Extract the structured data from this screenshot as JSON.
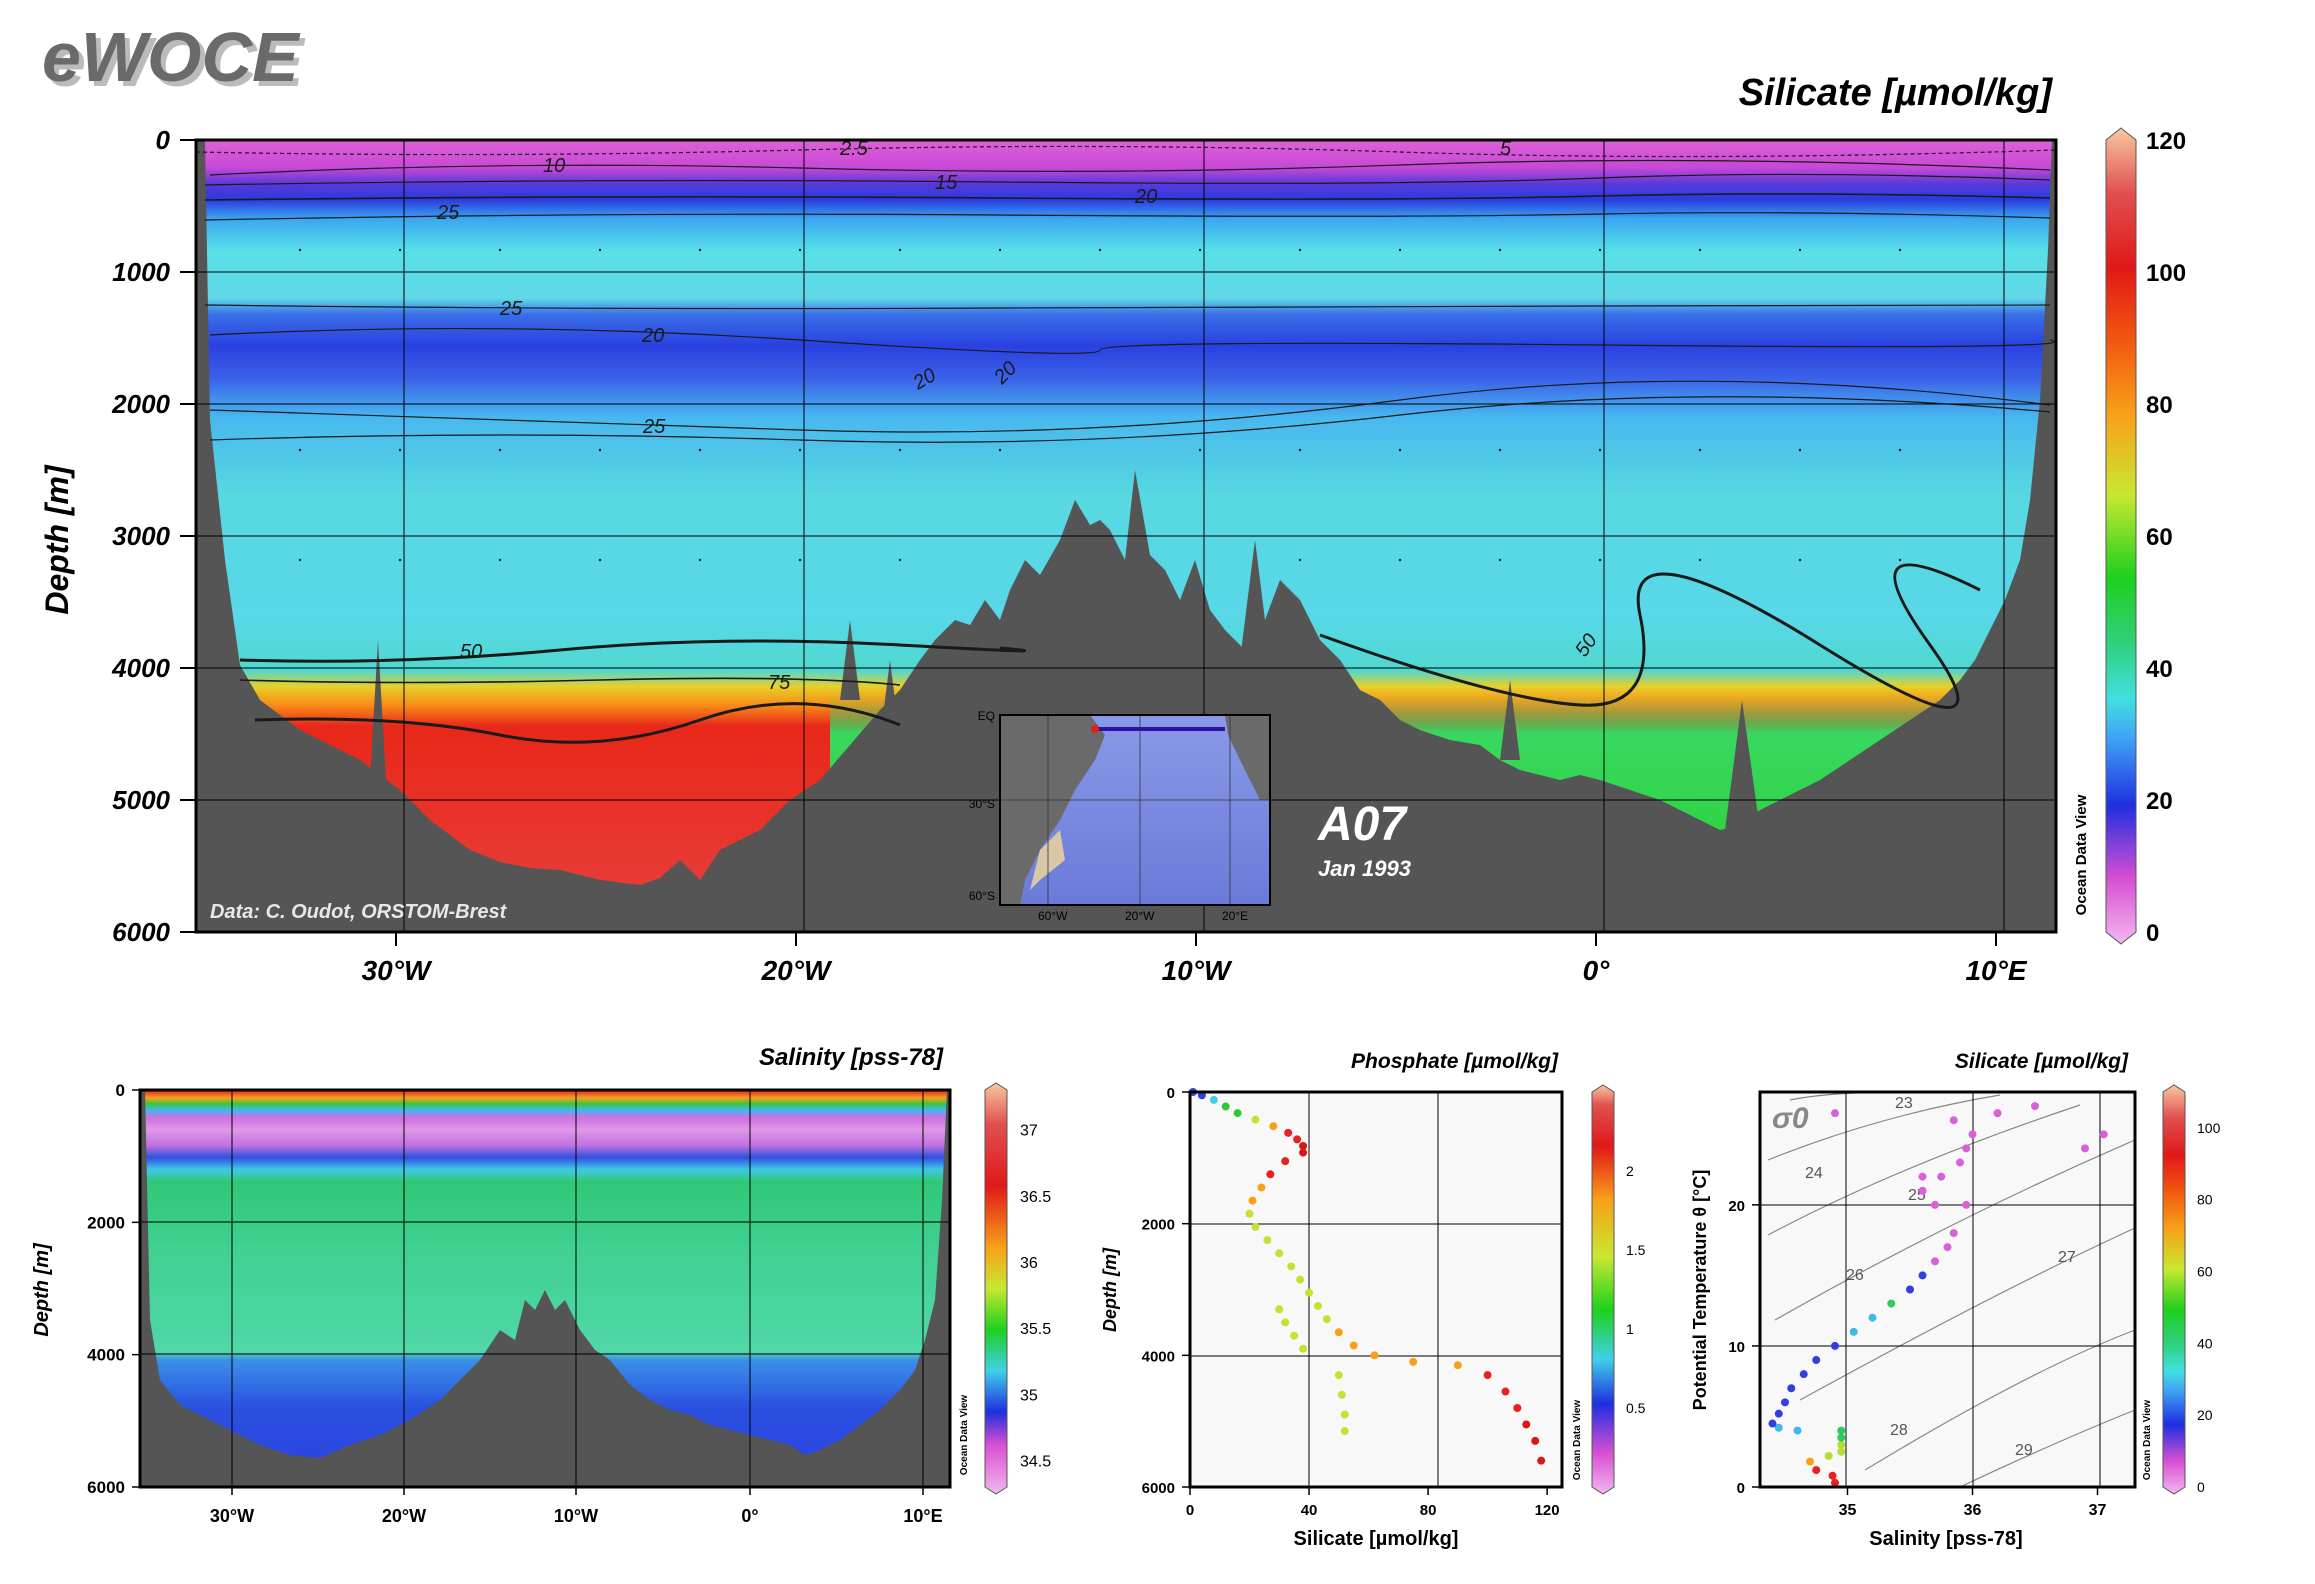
{
  "logo": "eWOCE",
  "main": {
    "title": "Silicate [µmol/kg]",
    "ylabel": "Depth [m]",
    "credit": "Data: C. Oudot, ORSTOM-Brest",
    "section": "A07",
    "date": "Jan 1993",
    "odv": "Ocean Data View",
    "inset_lat_labels": [
      "EQ",
      "30°S",
      "60°S"
    ],
    "inset_lon_labels": [
      "60°W",
      "20°W",
      "20°E"
    ]
  },
  "salinity": {
    "title": "Salinity [pss-78]",
    "ylabel": "Depth [m]",
    "odv": "Ocean Data View"
  },
  "phosphate": {
    "title": "Phosphate [µmol/kg]",
    "ylabel": "Depth [m]",
    "xlabel": "Silicate [µmol/kg]",
    "odv": "Ocean Data View"
  },
  "ts": {
    "title": "Silicate [µmol/kg]",
    "ylabel": "Potential Temperature θ [°C]",
    "xlabel": "Salinity [pss-78]",
    "sigma": "σ0",
    "odv": "Ocean Data View"
  },
  "chart_data": [
    {
      "type": "heatmap",
      "title": "Silicate [µmol/kg]",
      "ylabel": "Depth [m]",
      "x_ticks": [
        "30°W",
        "20°W",
        "10°W",
        "0°",
        "10°E"
      ],
      "x_values": [
        -30,
        -20,
        -10,
        0,
        10
      ],
      "xlim": [
        -35,
        11.5
      ],
      "y_ticks": [
        "0",
        "1000",
        "2000",
        "3000",
        "4000",
        "5000",
        "6000"
      ],
      "ylim": [
        0,
        6000
      ],
      "colorbar_ticks": [
        "0",
        "20",
        "40",
        "60",
        "80",
        "100",
        "120"
      ],
      "colorbar_range": [
        0,
        120
      ],
      "contour_labels": [
        "2.5",
        "5",
        "10",
        "15",
        "20",
        "25",
        "25",
        "20",
        "20",
        "20",
        "25",
        "50",
        "75",
        "50"
      ],
      "grid": true
    },
    {
      "type": "heatmap",
      "title": "Salinity [pss-78]",
      "ylabel": "Depth [m]",
      "x_ticks": [
        "30°W",
        "20°W",
        "10°W",
        "0°",
        "10°E"
      ],
      "y_ticks": [
        "0",
        "2000",
        "4000",
        "6000"
      ],
      "ylim": [
        0,
        6000
      ],
      "colorbar_ticks": [
        "34.5",
        "35",
        "35.5",
        "36",
        "36.5",
        "37"
      ],
      "colorbar_range": [
        34.3,
        37.3
      ],
      "grid": true
    },
    {
      "type": "scatter",
      "title": "Phosphate [µmol/kg]",
      "xlabel": "Silicate [µmol/kg]",
      "ylabel": "Depth [m]",
      "x_ticks": [
        "0",
        "40",
        "80",
        "120"
      ],
      "xlim": [
        0,
        125
      ],
      "y_ticks": [
        "0",
        "2000",
        "4000",
        "6000"
      ],
      "ylim": [
        0,
        6000
      ],
      "color_variable": "Phosphate [µmol/kg]",
      "colorbar_ticks": [
        "0.5",
        "1",
        "1.5",
        "2"
      ],
      "colorbar_range": [
        0,
        2.5
      ],
      "points": [
        [
          1,
          0,
          0.1
        ],
        [
          4,
          50,
          0.3
        ],
        [
          8,
          120,
          0.6
        ],
        [
          12,
          220,
          0.9
        ],
        [
          16,
          320,
          1.2
        ],
        [
          22,
          420,
          1.5
        ],
        [
          28,
          520,
          1.8
        ],
        [
          33,
          620,
          2.0
        ],
        [
          36,
          720,
          2.1
        ],
        [
          38,
          820,
          2.2
        ],
        [
          38,
          920,
          2.25
        ],
        [
          32,
          1050,
          2.1
        ],
        [
          27,
          1250,
          1.9
        ],
        [
          24,
          1450,
          1.75
        ],
        [
          21,
          1650,
          1.6
        ],
        [
          20,
          1850,
          1.45
        ],
        [
          22,
          2050,
          1.35
        ],
        [
          26,
          2250,
          1.3
        ],
        [
          30,
          2450,
          1.3
        ],
        [
          34,
          2650,
          1.35
        ],
        [
          37,
          2850,
          1.4
        ],
        [
          40,
          3050,
          1.45
        ],
        [
          43,
          3250,
          1.5
        ],
        [
          46,
          3450,
          1.55
        ],
        [
          50,
          3650,
          1.6
        ],
        [
          55,
          3850,
          1.65
        ],
        [
          62,
          4000,
          1.7
        ],
        [
          75,
          4100,
          1.75
        ],
        [
          90,
          4150,
          1.8
        ],
        [
          100,
          4300,
          1.95
        ],
        [
          106,
          4550,
          2.05
        ],
        [
          110,
          4800,
          2.15
        ],
        [
          113,
          5050,
          2.2
        ],
        [
          116,
          5300,
          2.25
        ],
        [
          118,
          5600,
          2.3
        ],
        [
          50,
          4300,
          1.55
        ],
        [
          51,
          4600,
          1.5
        ],
        [
          52,
          4900,
          1.45
        ],
        [
          52,
          5150,
          1.4
        ],
        [
          30,
          3300,
          1.3
        ],
        [
          32,
          3500,
          1.35
        ],
        [
          35,
          3700,
          1.4
        ],
        [
          38,
          3900,
          1.45
        ]
      ]
    },
    {
      "type": "scatter",
      "title": "Silicate [µmol/kg]",
      "xlabel": "Salinity [pss-78]",
      "ylabel": "Potential Temperature θ [°C]",
      "x_ticks": [
        "35",
        "36",
        "37"
      ],
      "xlim": [
        34.3,
        37.3
      ],
      "y_ticks": [
        "0",
        "10",
        "20"
      ],
      "ylim": [
        0,
        28
      ],
      "color_variable": "Silicate [µmol/kg]",
      "colorbar_ticks": [
        "0",
        "20",
        "40",
        "60",
        "80",
        "100"
      ],
      "colorbar_range": [
        0,
        110
      ],
      "isopycnal_labels": [
        "23",
        "24",
        "25",
        "26",
        "27",
        "28",
        "29"
      ],
      "points": [
        [
          34.9,
          0.3,
          110
        ],
        [
          34.88,
          0.8,
          100
        ],
        [
          34.75,
          1.2,
          80
        ],
        [
          34.7,
          1.8,
          65
        ],
        [
          34.85,
          2.2,
          55
        ],
        [
          34.95,
          2.5,
          50
        ],
        [
          34.95,
          3.0,
          45
        ],
        [
          34.95,
          3.5,
          42
        ],
        [
          34.95,
          4.0,
          40
        ],
        [
          34.6,
          4.0,
          30
        ],
        [
          34.45,
          4.2,
          24
        ],
        [
          34.4,
          4.5,
          22
        ],
        [
          34.45,
          5.2,
          20
        ],
        [
          34.5,
          6,
          18
        ],
        [
          34.55,
          7,
          17
        ],
        [
          34.65,
          8,
          16
        ],
        [
          34.75,
          9,
          18
        ],
        [
          34.9,
          10,
          22
        ],
        [
          35.05,
          11,
          28
        ],
        [
          35.2,
          12,
          32
        ],
        [
          35.35,
          13,
          35
        ],
        [
          35.5,
          14,
          8
        ],
        [
          35.6,
          15,
          6
        ],
        [
          35.7,
          16,
          5
        ],
        [
          35.8,
          17,
          4
        ],
        [
          35.85,
          18,
          4
        ],
        [
          35.7,
          20,
          3
        ],
        [
          35.6,
          21,
          2
        ],
        [
          35.75,
          22,
          2
        ],
        [
          35.9,
          23,
          2
        ],
        [
          35.95,
          24,
          2
        ],
        [
          36.0,
          25,
          2
        ],
        [
          35.85,
          26,
          2
        ],
        [
          36.2,
          26.5,
          2
        ],
        [
          36.5,
          27,
          2
        ],
        [
          34.9,
          26.5,
          5
        ],
        [
          36.9,
          24,
          3
        ],
        [
          37.05,
          25,
          3
        ],
        [
          35.95,
          20,
          2
        ],
        [
          35.6,
          22,
          2
        ]
      ]
    }
  ]
}
